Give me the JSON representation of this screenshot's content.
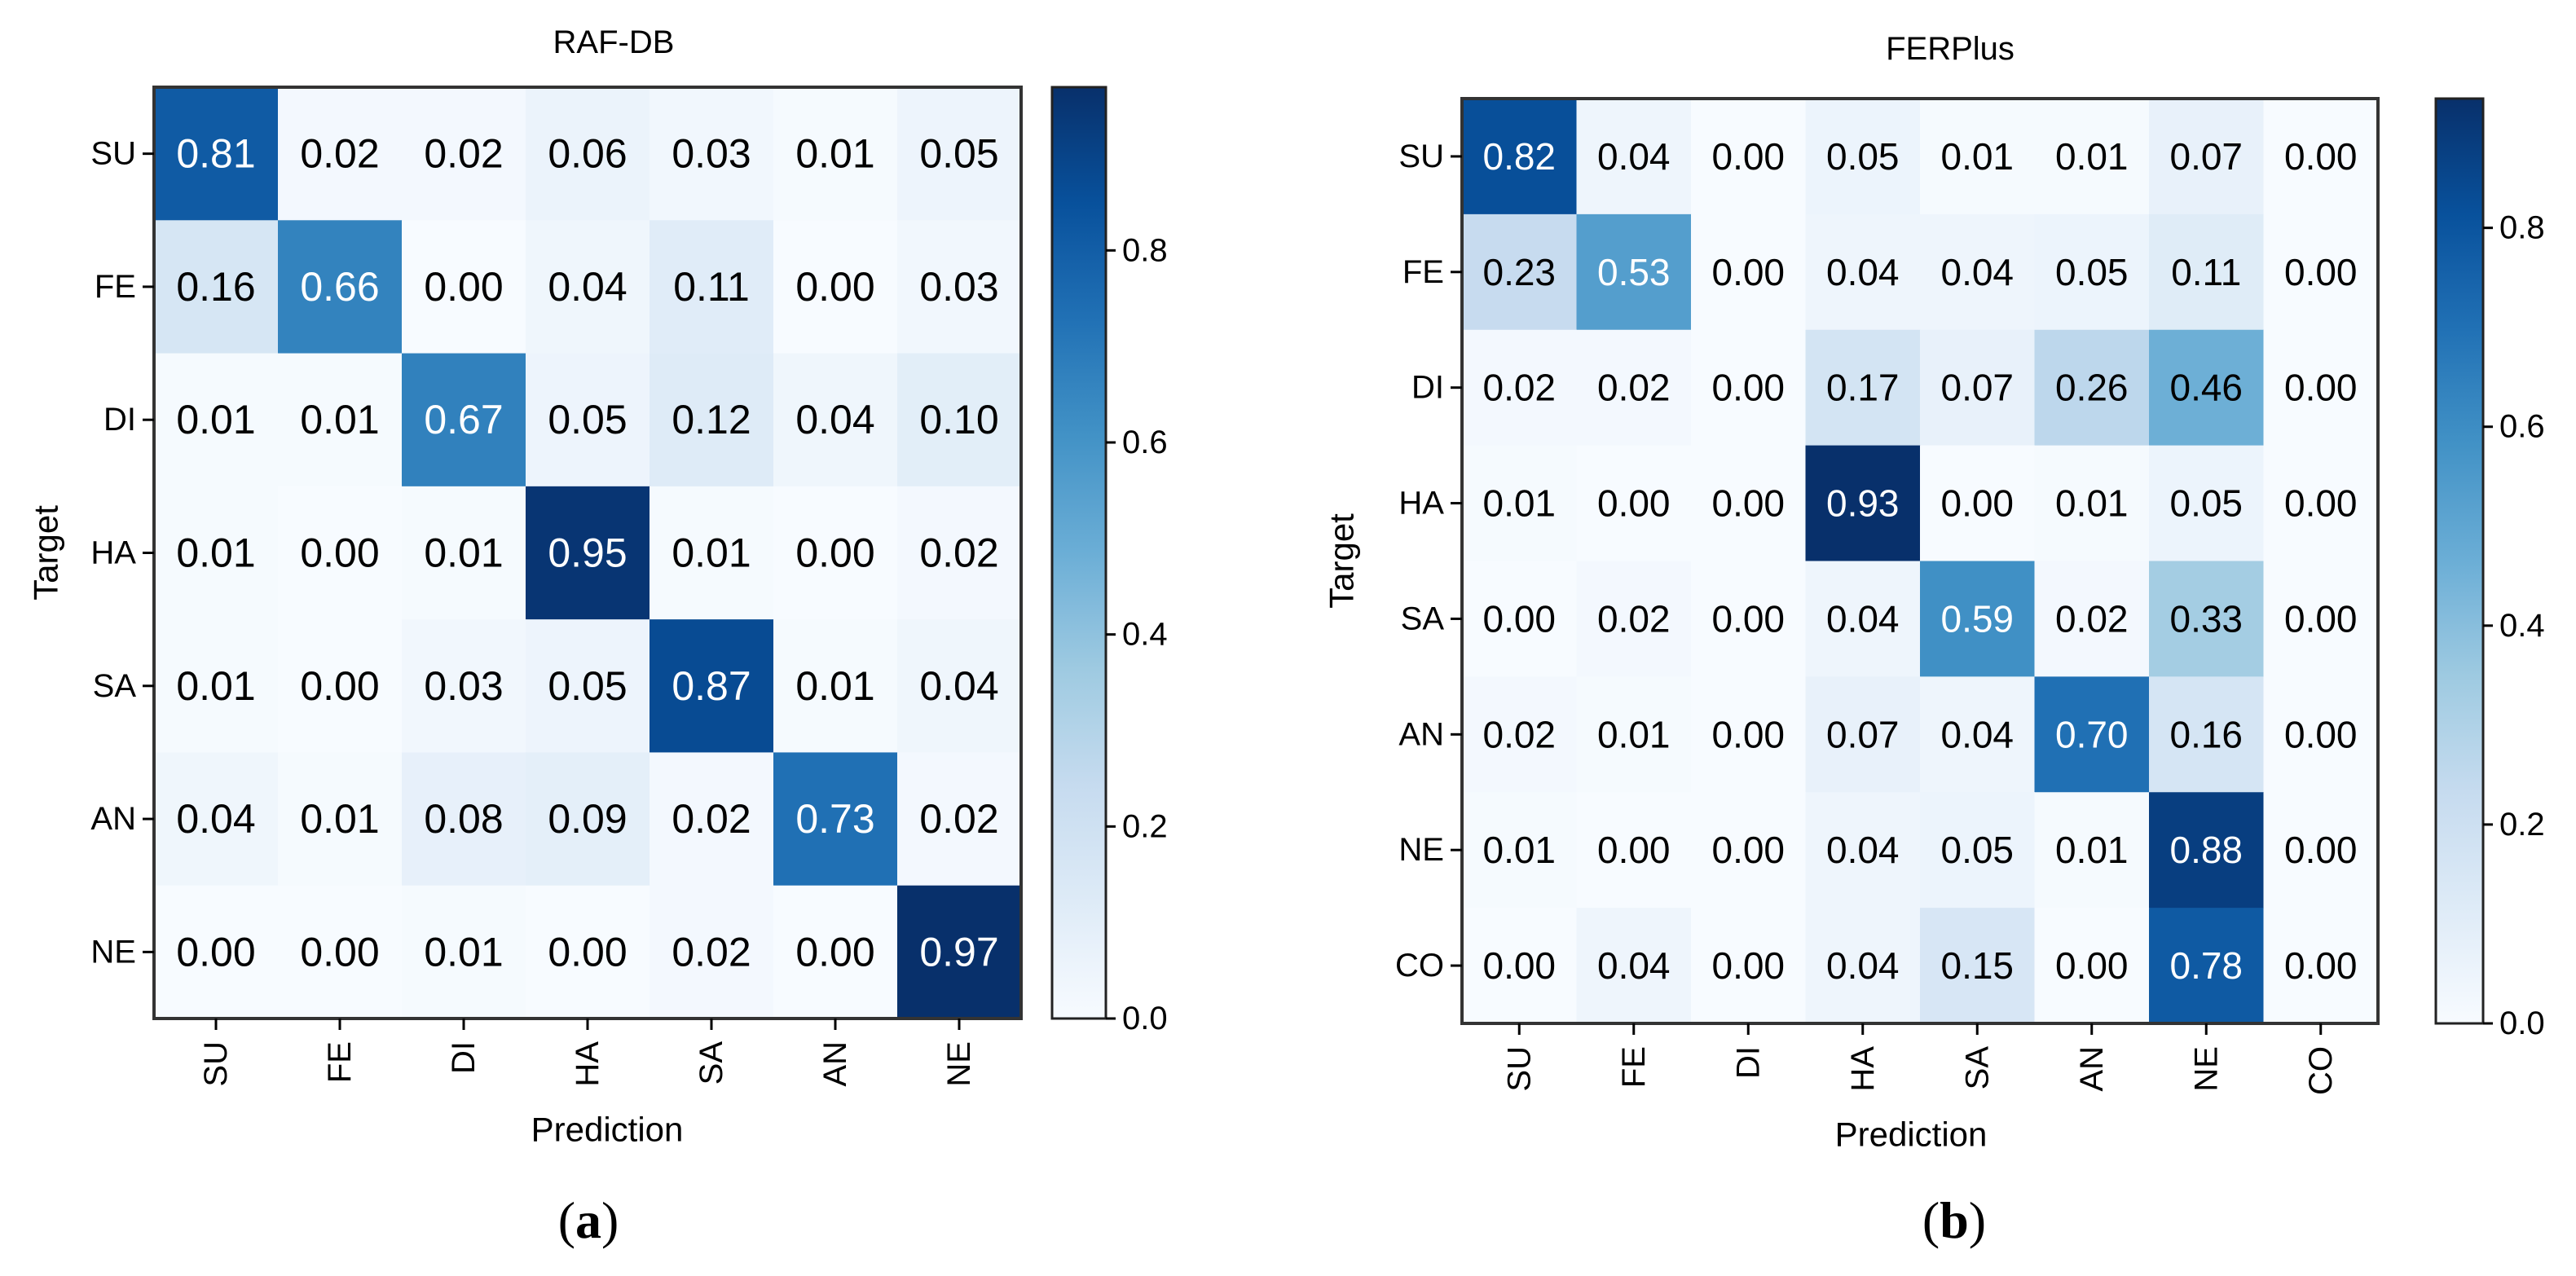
{
  "chart_data": [
    {
      "type": "heatmap",
      "title": "RAF-DB",
      "xlabel": "Prediction",
      "ylabel": "Target",
      "caption": [
        "(",
        "a",
        ")"
      ],
      "x_categories": [
        "SU",
        "FE",
        "DI",
        "HA",
        "SA",
        "AN",
        "NE"
      ],
      "y_categories": [
        "SU",
        "FE",
        "DI",
        "HA",
        "SA",
        "AN",
        "NE"
      ],
      "values": [
        [
          0.81,
          0.02,
          0.02,
          0.06,
          0.03,
          0.01,
          0.05
        ],
        [
          0.16,
          0.66,
          0.0,
          0.04,
          0.11,
          0.0,
          0.03
        ],
        [
          0.01,
          0.01,
          0.67,
          0.05,
          0.12,
          0.04,
          0.1
        ],
        [
          0.01,
          0.0,
          0.01,
          0.95,
          0.01,
          0.0,
          0.02
        ],
        [
          0.01,
          0.0,
          0.03,
          0.05,
          0.87,
          0.01,
          0.04
        ],
        [
          0.04,
          0.01,
          0.08,
          0.09,
          0.02,
          0.73,
          0.02
        ],
        [
          0.0,
          0.0,
          0.01,
          0.0,
          0.02,
          0.0,
          0.97
        ]
      ],
      "colormap": "Blues",
      "colorbar": {
        "range": [
          0.0,
          0.97
        ],
        "ticks": [
          "0.0",
          "0.2",
          "0.4",
          "0.6",
          "0.8"
        ]
      }
    },
    {
      "type": "heatmap",
      "title": "FERPlus",
      "xlabel": "Prediction",
      "ylabel": "Target",
      "caption": [
        "(",
        "b",
        ")"
      ],
      "x_categories": [
        "SU",
        "FE",
        "DI",
        "HA",
        "SA",
        "AN",
        "NE",
        "CO"
      ],
      "y_categories": [
        "SU",
        "FE",
        "DI",
        "HA",
        "SA",
        "AN",
        "NE",
        "CO"
      ],
      "values": [
        [
          0.82,
          0.04,
          0.0,
          0.05,
          0.01,
          0.01,
          0.07,
          0.0
        ],
        [
          0.23,
          0.53,
          0.0,
          0.04,
          0.04,
          0.05,
          0.11,
          0.0
        ],
        [
          0.02,
          0.02,
          0.0,
          0.17,
          0.07,
          0.26,
          0.46,
          0.0
        ],
        [
          0.01,
          0.0,
          0.0,
          0.93,
          0.0,
          0.01,
          0.05,
          0.0
        ],
        [
          0.0,
          0.02,
          0.0,
          0.04,
          0.59,
          0.02,
          0.33,
          0.0
        ],
        [
          0.02,
          0.01,
          0.0,
          0.07,
          0.04,
          0.7,
          0.16,
          0.0
        ],
        [
          0.01,
          0.0,
          0.0,
          0.04,
          0.05,
          0.01,
          0.88,
          0.0
        ],
        [
          0.0,
          0.04,
          0.0,
          0.04,
          0.15,
          0.0,
          0.78,
          0.0
        ]
      ],
      "colormap": "Blues",
      "colorbar": {
        "range": [
          0.0,
          0.93
        ],
        "ticks": [
          "0.0",
          "0.2",
          "0.4",
          "0.6",
          "0.8"
        ]
      }
    }
  ],
  "colors": {
    "blues": [
      "#f7fbff",
      "#deebf7",
      "#c6dbef",
      "#9ecae1",
      "#6baed6",
      "#4292c6",
      "#2171b5",
      "#08519c",
      "#08306b"
    ],
    "text_dark": "#000000",
    "text_light": "#ffffff"
  }
}
